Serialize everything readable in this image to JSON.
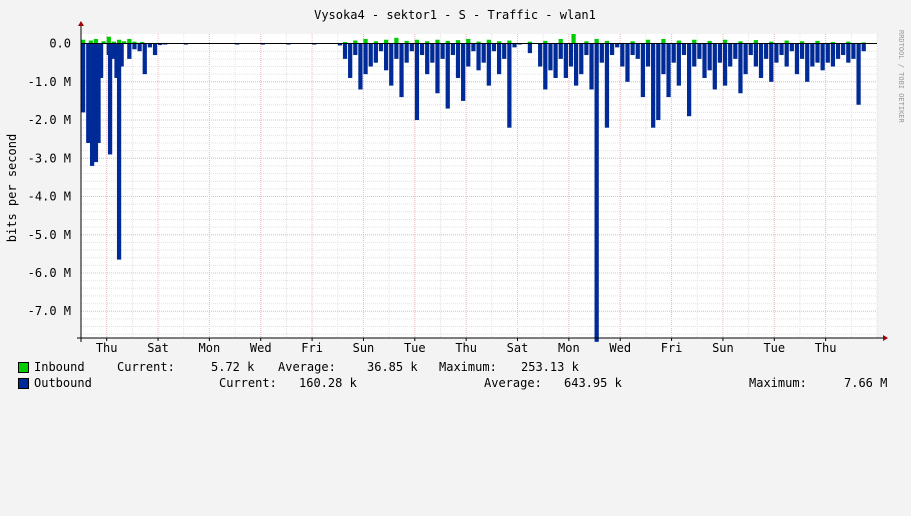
{
  "chart_data": {
    "type": "area",
    "title": "Vysoka4 - sektor1 - S - Traffic - wlan1",
    "ylabel": "bits per second",
    "watermark": "RRDTOOL / TOBI OETIKER",
    "ylim": [
      -7.7,
      0.25
    ],
    "y_ticks": [
      {
        "value": 0.0,
        "label": "0.0"
      },
      {
        "value": -1.0,
        "label": "-1.0 M"
      },
      {
        "value": -2.0,
        "label": "-2.0 M"
      },
      {
        "value": -3.0,
        "label": "-3.0 M"
      },
      {
        "value": -4.0,
        "label": "-4.0 M"
      },
      {
        "value": -5.0,
        "label": "-5.0 M"
      },
      {
        "value": -6.0,
        "label": "-6.0 M"
      },
      {
        "value": -7.0,
        "label": "-7.0 M"
      }
    ],
    "x_ticks": [
      "Thu",
      "Sat",
      "Mon",
      "Wed",
      "Fri",
      "Sun",
      "Tue",
      "Thu",
      "Sat",
      "Mon",
      "Wed",
      "Fri",
      "Sun",
      "Tue",
      "Thu"
    ],
    "x_tick_days": [
      1,
      3,
      5,
      7,
      9,
      11,
      13,
      15,
      17,
      19,
      21,
      23,
      25,
      27,
      29
    ],
    "x_day_range": [
      0,
      31
    ],
    "series": [
      {
        "name": "Inbound",
        "color": "#00cc00",
        "points": [
          [
            0.0,
            0.1
          ],
          [
            0.3,
            0.08
          ],
          [
            0.5,
            0.12
          ],
          [
            0.8,
            0.06
          ],
          [
            1.0,
            0.18
          ],
          [
            1.2,
            0.05
          ],
          [
            1.4,
            0.1
          ],
          [
            1.6,
            0.06
          ],
          [
            1.8,
            0.12
          ],
          [
            2.0,
            0.05
          ],
          [
            2.3,
            0.04
          ],
          [
            10.2,
            0.04
          ],
          [
            10.6,
            0.08
          ],
          [
            11.0,
            0.12
          ],
          [
            11.4,
            0.06
          ],
          [
            11.8,
            0.1
          ],
          [
            12.2,
            0.15
          ],
          [
            12.6,
            0.07
          ],
          [
            13.0,
            0.1
          ],
          [
            13.4,
            0.06
          ],
          [
            13.8,
            0.1
          ],
          [
            14.2,
            0.07
          ],
          [
            14.6,
            0.09
          ],
          [
            15.0,
            0.12
          ],
          [
            15.4,
            0.05
          ],
          [
            15.8,
            0.1
          ],
          [
            16.2,
            0.06
          ],
          [
            16.6,
            0.08
          ],
          [
            17.4,
            0.05
          ],
          [
            18.0,
            0.07
          ],
          [
            18.6,
            0.12
          ],
          [
            19.1,
            0.25
          ],
          [
            19.6,
            0.06
          ],
          [
            20.0,
            0.12
          ],
          [
            20.4,
            0.07
          ],
          [
            21.4,
            0.06
          ],
          [
            22.0,
            0.1
          ],
          [
            22.6,
            0.12
          ],
          [
            23.2,
            0.08
          ],
          [
            23.8,
            0.1
          ],
          [
            24.4,
            0.07
          ],
          [
            25.0,
            0.1
          ],
          [
            25.6,
            0.06
          ],
          [
            26.2,
            0.09
          ],
          [
            26.8,
            0.05
          ],
          [
            27.4,
            0.08
          ],
          [
            28.0,
            0.06
          ],
          [
            28.6,
            0.07
          ],
          [
            29.2,
            0.04
          ],
          [
            29.8,
            0.05
          ],
          [
            30.4,
            0.03
          ]
        ]
      },
      {
        "name": "Outbound",
        "color": "#002a97",
        "points": [
          [
            0.0,
            -1.8
          ],
          [
            0.2,
            -2.6
          ],
          [
            0.35,
            -3.2
          ],
          [
            0.5,
            -3.1
          ],
          [
            0.6,
            -2.6
          ],
          [
            0.7,
            -0.9
          ],
          [
            1.0,
            -0.3
          ],
          [
            1.05,
            -2.9
          ],
          [
            1.2,
            -0.4
          ],
          [
            1.3,
            -0.9
          ],
          [
            1.4,
            -5.65
          ],
          [
            1.5,
            -0.6
          ],
          [
            1.8,
            -0.4
          ],
          [
            2.0,
            -0.15
          ],
          [
            2.2,
            -0.2
          ],
          [
            2.4,
            -0.8
          ],
          [
            2.6,
            -0.1
          ],
          [
            2.8,
            -0.3
          ],
          [
            3.0,
            -0.04
          ],
          [
            3.2,
            -0.01
          ],
          [
            4.0,
            -0.02
          ],
          [
            6.0,
            -0.02
          ],
          [
            7.0,
            -0.02
          ],
          [
            8.0,
            -0.02
          ],
          [
            9.0,
            -0.02
          ],
          [
            10.0,
            -0.05
          ],
          [
            10.2,
            -0.4
          ],
          [
            10.4,
            -0.9
          ],
          [
            10.6,
            -0.3
          ],
          [
            10.8,
            -1.2
          ],
          [
            11.0,
            -0.8
          ],
          [
            11.2,
            -0.6
          ],
          [
            11.4,
            -0.5
          ],
          [
            11.6,
            -0.2
          ],
          [
            11.8,
            -0.7
          ],
          [
            12.0,
            -1.1
          ],
          [
            12.2,
            -0.4
          ],
          [
            12.4,
            -1.4
          ],
          [
            12.6,
            -0.5
          ],
          [
            12.8,
            -0.2
          ],
          [
            13.0,
            -2.0
          ],
          [
            13.2,
            -0.3
          ],
          [
            13.4,
            -0.8
          ],
          [
            13.6,
            -0.5
          ],
          [
            13.8,
            -1.3
          ],
          [
            14.0,
            -0.4
          ],
          [
            14.2,
            -1.7
          ],
          [
            14.4,
            -0.3
          ],
          [
            14.6,
            -0.9
          ],
          [
            14.8,
            -1.5
          ],
          [
            15.0,
            -0.6
          ],
          [
            15.2,
            -0.2
          ],
          [
            15.4,
            -0.7
          ],
          [
            15.6,
            -0.5
          ],
          [
            15.8,
            -1.1
          ],
          [
            16.0,
            -0.2
          ],
          [
            16.2,
            -0.8
          ],
          [
            16.4,
            -0.4
          ],
          [
            16.6,
            -2.2
          ],
          [
            16.8,
            -0.1
          ],
          [
            17.0,
            -0.02
          ],
          [
            17.4,
            -0.25
          ],
          [
            17.8,
            -0.6
          ],
          [
            18.0,
            -1.2
          ],
          [
            18.2,
            -0.7
          ],
          [
            18.4,
            -0.9
          ],
          [
            18.6,
            -0.4
          ],
          [
            18.8,
            -0.9
          ],
          [
            19.0,
            -0.6
          ],
          [
            19.2,
            -1.1
          ],
          [
            19.4,
            -0.8
          ],
          [
            19.6,
            -0.3
          ],
          [
            19.8,
            -1.2
          ],
          [
            20.0,
            -7.8
          ],
          [
            20.2,
            -0.5
          ],
          [
            20.4,
            -2.2
          ],
          [
            20.6,
            -0.3
          ],
          [
            20.8,
            -0.1
          ],
          [
            21.0,
            -0.6
          ],
          [
            21.2,
            -1.0
          ],
          [
            21.4,
            -0.3
          ],
          [
            21.6,
            -0.4
          ],
          [
            21.8,
            -1.4
          ],
          [
            22.0,
            -0.6
          ],
          [
            22.2,
            -2.2
          ],
          [
            22.4,
            -2.0
          ],
          [
            22.6,
            -0.8
          ],
          [
            22.8,
            -1.4
          ],
          [
            23.0,
            -0.5
          ],
          [
            23.2,
            -1.1
          ],
          [
            23.4,
            -0.3
          ],
          [
            23.6,
            -1.9
          ],
          [
            23.8,
            -0.6
          ],
          [
            24.0,
            -0.4
          ],
          [
            24.2,
            -0.9
          ],
          [
            24.4,
            -0.7
          ],
          [
            24.6,
            -1.2
          ],
          [
            24.8,
            -0.5
          ],
          [
            25.0,
            -1.1
          ],
          [
            25.2,
            -0.6
          ],
          [
            25.4,
            -0.4
          ],
          [
            25.6,
            -1.3
          ],
          [
            25.8,
            -0.8
          ],
          [
            26.0,
            -0.3
          ],
          [
            26.2,
            -0.6
          ],
          [
            26.4,
            -0.9
          ],
          [
            26.6,
            -0.4
          ],
          [
            26.8,
            -1.0
          ],
          [
            27.0,
            -0.5
          ],
          [
            27.2,
            -0.3
          ],
          [
            27.4,
            -0.6
          ],
          [
            27.6,
            -0.2
          ],
          [
            27.8,
            -0.8
          ],
          [
            28.0,
            -0.4
          ],
          [
            28.2,
            -1.0
          ],
          [
            28.4,
            -0.6
          ],
          [
            28.6,
            -0.5
          ],
          [
            28.8,
            -0.7
          ],
          [
            29.0,
            -0.5
          ],
          [
            29.2,
            -0.6
          ],
          [
            29.4,
            -0.4
          ],
          [
            29.6,
            -0.3
          ],
          [
            29.8,
            -0.5
          ],
          [
            30.0,
            -0.4
          ],
          [
            30.2,
            -1.6
          ],
          [
            30.4,
            -0.2
          ]
        ]
      }
    ],
    "legend": [
      {
        "name": "Inbound",
        "color": "#00cc00",
        "current_label": "Current:",
        "current": "5.72 k",
        "average_label": "Average:",
        "average": "36.85 k",
        "maximum_label": "Maximum:",
        "maximum": "253.13 k"
      },
      {
        "name": "Outbound",
        "color": "#002a97",
        "current_label": "Current:",
        "current": "160.28 k",
        "average_label": "Average:",
        "average": "643.95 k",
        "maximum_label": "Maximum:",
        "maximum": "7.66 M"
      }
    ]
  }
}
